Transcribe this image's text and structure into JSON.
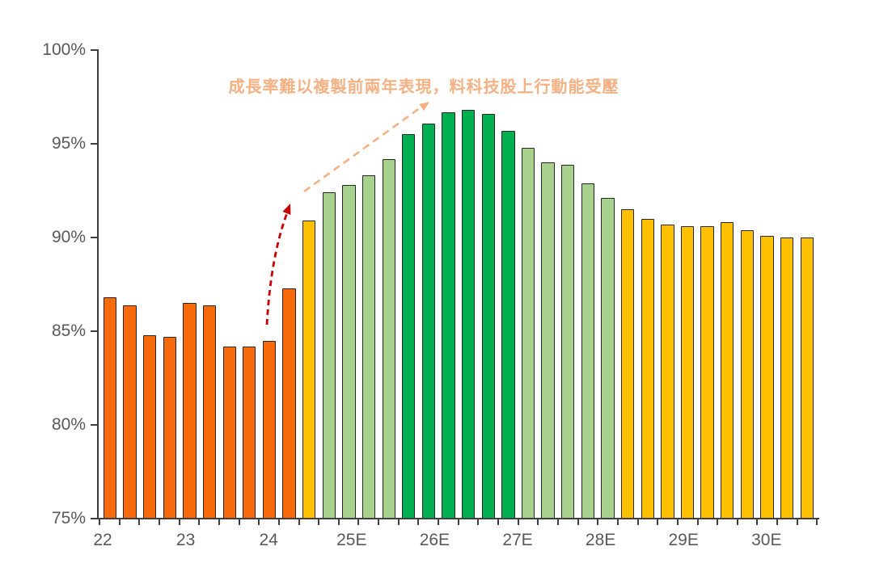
{
  "chart_data": {
    "type": "bar",
    "title": "",
    "xlabel": "",
    "ylabel": "",
    "annotation": "成長率難以複製前兩年表現，料科技股上行動能受壓",
    "legend": "none",
    "grid": "off",
    "y_axis": {
      "min": 75,
      "max": 100,
      "tick_step": 5,
      "tick_labels": [
        "75%",
        "80%",
        "85%",
        "90%",
        "95%",
        "100%"
      ]
    },
    "x_categories": [
      "22",
      "23",
      "24",
      "25E",
      "26E",
      "27E",
      "28E",
      "29E",
      "30E"
    ],
    "bars_per_year": 4,
    "values": [
      86.8,
      86.4,
      84.8,
      84.7,
      86.5,
      86.4,
      84.2,
      84.2,
      84.5,
      87.3,
      90.9,
      92.4,
      92.8,
      93.3,
      94.2,
      95.5,
      96.1,
      96.7,
      96.8,
      96.6,
      95.7,
      94.8,
      94.0,
      93.9,
      92.9,
      92.1,
      91.5,
      91.0,
      90.7,
      90.6,
      90.6,
      90.8,
      90.4,
      90.1,
      90.0,
      90.0
    ],
    "bar_color_keys": [
      "orange",
      "orange",
      "orange",
      "orange",
      "orange",
      "orange",
      "orange",
      "orange",
      "orange",
      "orange",
      "gold",
      "light_green",
      "light_green",
      "light_green",
      "light_green",
      "dark_green",
      "dark_green",
      "dark_green",
      "dark_green",
      "dark_green",
      "dark_green",
      "light_green",
      "light_green",
      "light_green",
      "light_green",
      "light_green",
      "gold",
      "gold",
      "gold",
      "gold",
      "gold",
      "gold",
      "gold",
      "gold",
      "gold",
      "gold"
    ],
    "palette": {
      "orange": "#F8690B",
      "gold": "#FFC000",
      "light_green": "#A9D18E",
      "dark_green": "#00B050"
    },
    "colors": {
      "bar_border": "#262626",
      "axis": "#3f3f3f",
      "axis_text": "#595959",
      "annotation_text": "#F4B183",
      "salmon_arrow": "#F4B183",
      "red_arrow": "#C80000"
    }
  }
}
